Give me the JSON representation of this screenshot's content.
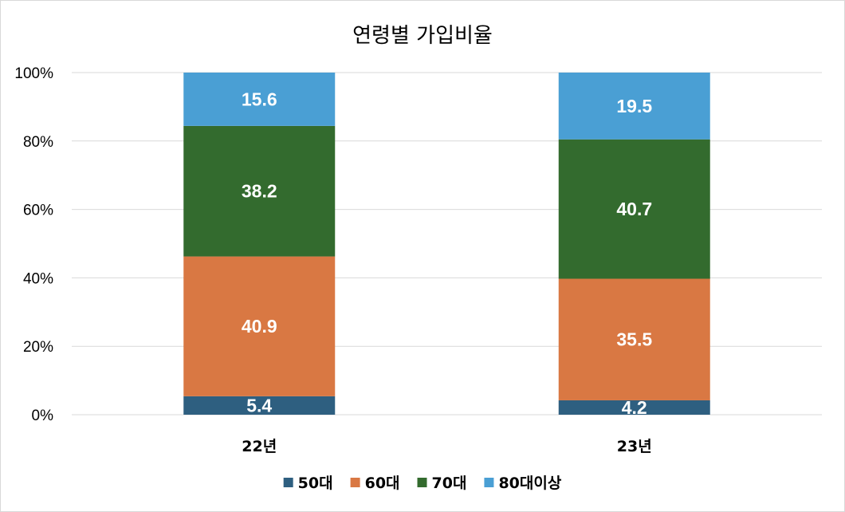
{
  "chart_data": {
    "type": "bar",
    "stacked": true,
    "percent_stacked": true,
    "title": "연령별 가입비율",
    "categories": [
      "22년",
      "23년"
    ],
    "series": [
      {
        "name": "50대",
        "values": [
          5.4,
          4.2
        ],
        "color": "#2e5f80"
      },
      {
        "name": "60대",
        "values": [
          40.9,
          35.5
        ],
        "color": "#d97843"
      },
      {
        "name": "70대",
        "values": [
          38.2,
          40.7
        ],
        "color": "#336b2e"
      },
      {
        "name": "80대이상",
        "values": [
          15.6,
          19.5
        ],
        "color": "#4a9fd4"
      }
    ],
    "ylim": [
      0,
      100
    ],
    "yticks": [
      "0%",
      "20%",
      "40%",
      "60%",
      "80%",
      "100%"
    ],
    "grid": true,
    "legend": "bottom",
    "data_labels": true
  }
}
